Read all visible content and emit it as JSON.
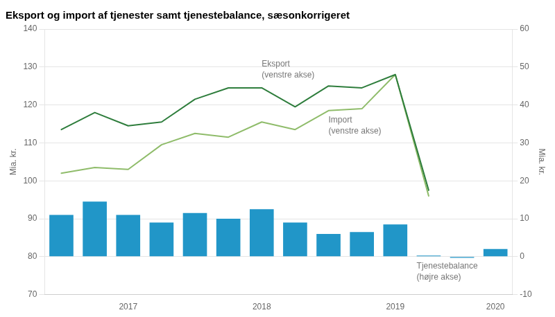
{
  "chart_data": {
    "type": "bar",
    "title": "Eksport og import af tjenester samt tjenestebalance, sæsonkorrigeret",
    "categories": [
      null,
      null,
      "2017",
      null,
      null,
      null,
      "2018",
      null,
      null,
      null,
      "2019",
      null,
      null,
      "2020"
    ],
    "series": [
      {
        "name": "Tjenestebalance\n(højre akse)",
        "type": "bar",
        "color": "#2196c8",
        "axis": "y2",
        "values": [
          11.0,
          14.5,
          11.0,
          9.0,
          11.5,
          10.0,
          12.5,
          9.0,
          6.0,
          6.5,
          8.5,
          0.3,
          -0.3,
          2.0
        ]
      },
      {
        "name": "Eksport\n(venstre akse)",
        "type": "line",
        "color": "#2e7d3c",
        "values": [
          113.5,
          118.0,
          114.5,
          115.5,
          121.5,
          124.5,
          124.5,
          119.5,
          125.0,
          124.5,
          128.0,
          97.5,
          null,
          null
        ]
      },
      {
        "name": "Import\n(venstre akse)",
        "type": "line",
        "color": "#8fbc6a",
        "values": [
          102.0,
          103.5,
          103.0,
          109.5,
          112.5,
          111.5,
          115.5,
          113.5,
          118.5,
          119.0,
          128.0,
          96.0,
          null,
          null
        ]
      }
    ],
    "ylabel": "Mia. kr.",
    "y2label": "Mia. kr.",
    "ylim": [
      70,
      140
    ],
    "yticks": [
      70,
      80,
      90,
      100,
      110,
      120,
      130,
      140
    ],
    "y2lim": [
      -10,
      60
    ],
    "y2ticks": [
      -10,
      0,
      10,
      20,
      30,
      40,
      50,
      60
    ],
    "grid": true
  }
}
